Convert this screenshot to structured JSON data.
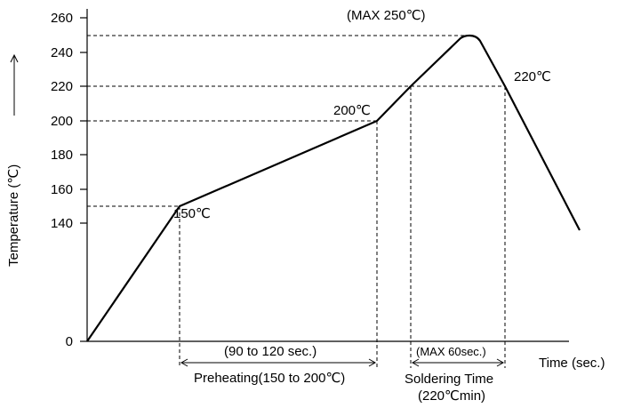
{
  "chart_data": {
    "type": "line",
    "xlabel": "Time (sec.)",
    "ylabel": "Temperature (℃)",
    "y_ticks": [
      "0",
      "140",
      "160",
      "180",
      "200",
      "220",
      "240",
      "260"
    ],
    "series": [
      {
        "values_note": "",
        "points": [
          {
            "t": 0,
            "temp": 0
          },
          {
            "t": 1,
            "temp": 150
          },
          {
            "t": 2,
            "temp": 200
          },
          {
            "t": 3,
            "temp": 220
          },
          {
            "t": 4,
            "temp": 250
          },
          {
            "t": 5,
            "temp": 220
          },
          {
            "t": 6,
            "temp": 140
          }
        ]
      }
    ],
    "annotations": {
      "max_temp": "(MAX 250℃)",
      "t220": "220℃",
      "t200": "200℃",
      "t150": "150℃",
      "preheat_range": "(90 to 120 sec.)",
      "preheat_label": "Preheating(150 to 200℃)",
      "solder_max": "(MAX 60sec.)",
      "solder_label1": "Soldering Time",
      "solder_label2": "(220℃min)"
    }
  }
}
